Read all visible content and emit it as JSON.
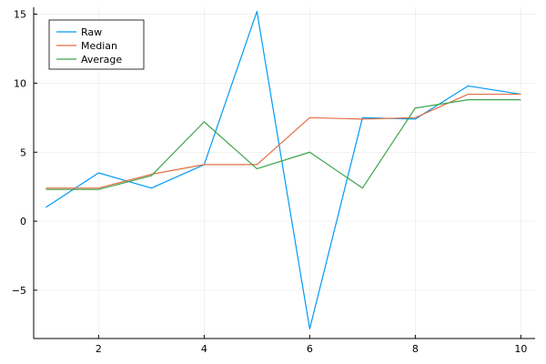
{
  "chart_data": {
    "type": "line",
    "x": [
      1,
      2,
      3,
      4,
      5,
      6,
      7,
      8,
      9,
      10
    ],
    "series": [
      {
        "name": "Raw",
        "color": "#009af9",
        "values": [
          1.0,
          3.5,
          2.4,
          4.1,
          15.2,
          -7.8,
          7.5,
          7.4,
          9.8,
          9.2
        ]
      },
      {
        "name": "Median",
        "color": "#e26f46",
        "values": [
          2.4,
          2.4,
          3.4,
          4.1,
          4.1,
          7.5,
          7.4,
          7.5,
          9.2,
          9.2
        ]
      },
      {
        "name": "Average",
        "color": "#3da44d",
        "values": [
          2.3,
          2.3,
          3.3,
          7.2,
          3.8,
          5.0,
          2.4,
          8.2,
          8.8,
          8.8
        ]
      }
    ],
    "xlim": [
      0.77,
      10.27
    ],
    "ylim": [
      -8.5,
      15.5
    ],
    "xticks": [
      2,
      4,
      6,
      8,
      10
    ],
    "yticks": [
      -5,
      0,
      5,
      10,
      15
    ],
    "xtick_labels": [
      "2",
      "4",
      "6",
      "8",
      "10"
    ],
    "ytick_labels": [
      "−5",
      "0",
      "5",
      "10",
      "15"
    ],
    "grid": true,
    "legend_position": "top-left"
  }
}
